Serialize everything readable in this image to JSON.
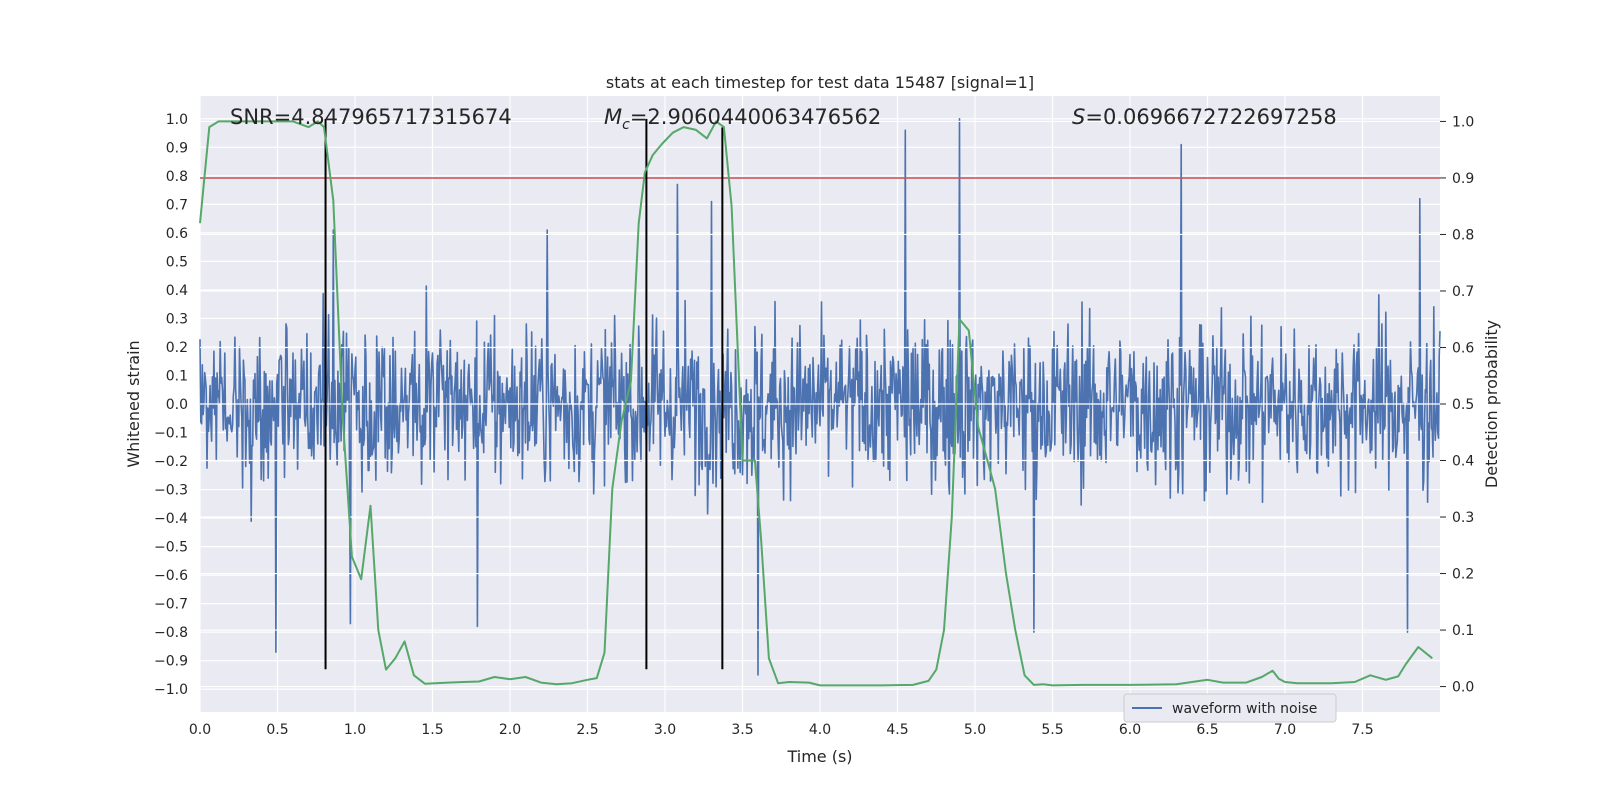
{
  "chart_data": {
    "type": "line",
    "title": "stats at each timestep for test data 15487 [signal=1]",
    "xlabel": "Time (s)",
    "ylabel_left": "Whitened strain",
    "ylabel_right": "Detection probability",
    "xlim": [
      0.0,
      8.0
    ],
    "ylim_left": [
      -1.08,
      1.08
    ],
    "ylim_right": [
      -0.045,
      1.045
    ],
    "x_ticks": [
      0.0,
      0.5,
      1.0,
      1.5,
      2.0,
      2.5,
      3.0,
      3.5,
      4.0,
      4.5,
      5.0,
      5.5,
      6.0,
      6.5,
      7.0,
      7.5
    ],
    "x_tick_labels": [
      "0.0",
      "0.5",
      "1.0",
      "1.5",
      "2.0",
      "2.5",
      "3.0",
      "3.5",
      "4.0",
      "4.5",
      "5.0",
      "5.5",
      "6.0",
      "6.5",
      "7.0",
      "7.5"
    ],
    "y_left_ticks": [
      1.0,
      0.9,
      0.8,
      0.7,
      0.6,
      0.5,
      0.4,
      0.3,
      0.2,
      0.1,
      0.0,
      -0.1,
      -0.2,
      -0.3,
      -0.4,
      -0.5,
      -0.6,
      -0.7,
      -0.8,
      -0.9,
      -1.0
    ],
    "y_left_tick_labels": [
      "1.0",
      "0.9",
      "0.8",
      "0.7",
      "0.6",
      "0.5",
      "0.4",
      "0.3",
      "0.2",
      "0.1",
      "0.0",
      "−0.1",
      "−0.2",
      "−0.3",
      "−0.4",
      "−0.5",
      "−0.6",
      "−0.7",
      "−0.8",
      "−0.9",
      "−1.0"
    ],
    "y_right_ticks": [
      1.0,
      0.9,
      0.8,
      0.7,
      0.6,
      0.5,
      0.4,
      0.3,
      0.2,
      0.1,
      0.0
    ],
    "y_right_tick_labels": [
      "1.0",
      "0.9",
      "0.8",
      "0.7",
      "0.6",
      "0.5",
      "0.4",
      "0.3",
      "0.2",
      "0.1",
      "0.0"
    ],
    "grid": true,
    "legend": {
      "placement": "bottom-right",
      "entries": [
        "waveform with noise"
      ]
    },
    "annotations": {
      "snr": "SNR=4.847965717315674",
      "mc_symbol": "M",
      "mc_subscript": "c",
      "mc_value": "=2.9060440063476562",
      "s_symbol": "S",
      "s_value": "=0.0696672722697258"
    },
    "threshold": {
      "value_right": 0.9,
      "color": "#c44e52"
    },
    "vertical_markers": [
      {
        "x": 0.81,
        "y0": -0.93,
        "y1": 1.0
      },
      {
        "x": 2.88,
        "y0": -0.93,
        "y1": 1.0
      },
      {
        "x": 3.37,
        "y0": -0.93,
        "y1": 0.97
      }
    ],
    "series": [
      {
        "name": "waveform with noise",
        "color": "#4c72b0",
        "axis": "left",
        "peaks": [
          [
            0.49,
            -0.87
          ],
          [
            0.81,
            0.43
          ],
          [
            0.86,
            0.61
          ],
          [
            0.97,
            -0.77
          ],
          [
            1.79,
            -0.78
          ],
          [
            2.24,
            0.61
          ],
          [
            3.08,
            0.77
          ],
          [
            3.3,
            0.71
          ],
          [
            3.6,
            -0.95
          ],
          [
            4.55,
            0.96
          ],
          [
            4.9,
            1.0
          ],
          [
            5.38,
            -0.8
          ],
          [
            6.33,
            0.91
          ],
          [
            7.79,
            -0.8
          ],
          [
            7.87,
            0.72
          ]
        ]
      },
      {
        "name": "detection probability",
        "color": "#55a868",
        "axis": "right",
        "x": [
          0.0,
          0.06,
          0.12,
          0.2,
          0.3,
          0.5,
          0.6,
          0.7,
          0.76,
          0.8,
          0.86,
          0.92,
          0.98,
          1.04,
          1.1,
          1.15,
          1.2,
          1.26,
          1.32,
          1.38,
          1.45,
          1.6,
          1.7,
          1.8,
          1.9,
          2.0,
          2.1,
          2.2,
          2.3,
          2.4,
          2.5,
          2.56,
          2.61,
          2.66,
          2.72,
          2.78,
          2.83,
          2.87,
          2.92,
          2.98,
          3.05,
          3.12,
          3.2,
          3.27,
          3.33,
          3.38,
          3.43,
          3.5,
          3.58,
          3.62,
          3.67,
          3.73,
          3.8,
          3.93,
          4.0,
          4.2,
          4.4,
          4.6,
          4.7,
          4.75,
          4.8,
          4.85,
          4.9,
          4.96,
          5.02,
          5.08,
          5.13,
          5.2,
          5.26,
          5.32,
          5.38,
          5.44,
          5.5,
          5.7,
          6.0,
          6.3,
          6.5,
          6.6,
          6.75,
          6.85,
          6.92,
          6.96,
          7.0,
          7.08,
          7.18,
          7.3,
          7.45,
          7.55,
          7.65,
          7.73,
          7.78,
          7.86,
          7.95
        ],
        "values": [
          0.82,
          0.99,
          1.0,
          1.0,
          1.0,
          1.0,
          1.0,
          0.99,
          1.0,
          0.99,
          0.86,
          0.48,
          0.23,
          0.19,
          0.32,
          0.1,
          0.03,
          0.05,
          0.08,
          0.02,
          0.005,
          0.007,
          0.008,
          0.009,
          0.017,
          0.013,
          0.017,
          0.007,
          0.004,
          0.006,
          0.012,
          0.015,
          0.06,
          0.35,
          0.47,
          0.54,
          0.82,
          0.91,
          0.94,
          0.96,
          0.98,
          0.99,
          0.985,
          0.97,
          1.0,
          0.99,
          0.85,
          0.4,
          0.4,
          0.26,
          0.05,
          0.006,
          0.008,
          0.007,
          0.002,
          0.002,
          0.002,
          0.003,
          0.01,
          0.03,
          0.1,
          0.3,
          0.65,
          0.63,
          0.46,
          0.4,
          0.35,
          0.2,
          0.1,
          0.02,
          0.003,
          0.004,
          0.002,
          0.003,
          0.003,
          0.004,
          0.012,
          0.007,
          0.007,
          0.017,
          0.028,
          0.014,
          0.008,
          0.006,
          0.006,
          0.006,
          0.008,
          0.02,
          0.012,
          0.018,
          0.04,
          0.07,
          0.05
        ]
      }
    ]
  }
}
